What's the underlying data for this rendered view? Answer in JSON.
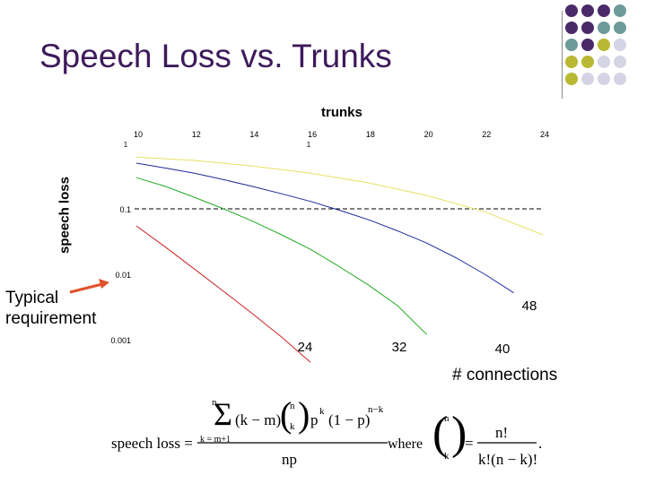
{
  "slide": {
    "title": "Speech Loss vs. Trunks",
    "annotation_typical": "Typical",
    "annotation_requirement": "requirement",
    "accent_arrow_color": "#e0522a",
    "title_color": "#3d1a5b"
  },
  "chart_data": {
    "type": "line",
    "title": "",
    "xlabel_top": "trunks",
    "ylabel": "speech loss",
    "x_ticks_top": [
      "10",
      "12",
      "14",
      "16",
      "18",
      "20",
      "22",
      "24"
    ],
    "top_secondary_ticks": [
      "1",
      "1"
    ],
    "y_ticks": [
      "0.1",
      "0.01",
      "0.001"
    ],
    "y_scale": "log",
    "ylim": [
      0.001,
      1
    ],
    "xlim": [
      10,
      24
    ],
    "reference_line": {
      "y": 0.1,
      "style": "dashed"
    },
    "connections_label": "# connections",
    "series": [
      {
        "label": "24",
        "color": "#cc2222",
        "x": [
          10,
          11,
          12,
          13,
          14,
          15,
          16
        ],
        "y": [
          0.055,
          0.026,
          0.012,
          0.0055,
          0.0025,
          0.0011,
          0.00045
        ]
      },
      {
        "label": "32",
        "color": "#22aa22",
        "x": [
          10,
          11,
          12,
          13,
          14,
          15,
          16,
          17,
          18,
          19,
          20
        ],
        "y": [
          0.3,
          0.22,
          0.15,
          0.1,
          0.065,
          0.04,
          0.024,
          0.013,
          0.0068,
          0.0033,
          0.0012
        ]
      },
      {
        "label": "40",
        "color": "#1a2a99",
        "x": [
          10,
          11,
          12,
          13,
          14,
          15,
          16,
          17,
          18,
          19,
          20,
          21,
          22,
          23
        ],
        "y": [
          0.5,
          0.42,
          0.35,
          0.28,
          0.22,
          0.17,
          0.13,
          0.095,
          0.068,
          0.046,
          0.03,
          0.018,
          0.01,
          0.0052
        ]
      },
      {
        "label": "48",
        "color": "#e8e060",
        "x": [
          10,
          12,
          14,
          16,
          18,
          20,
          22,
          24
        ],
        "y": [
          0.62,
          0.55,
          0.45,
          0.35,
          0.25,
          0.16,
          0.09,
          0.04
        ]
      }
    ]
  },
  "formula": {
    "lhs": "speech loss =",
    "sum_top": "n",
    "sum_bottom": "k = m+1",
    "numerator_a": "(k − m)",
    "binom_top": "n",
    "binom_bottom": "k",
    "p_term": "p",
    "p_exp": "k",
    "q_term": "(1 − p)",
    "q_exp": "n−k",
    "denominator": "np",
    "where": "where",
    "def_num": "n!",
    "def_den": "k!(n − k)!",
    "period": "."
  }
}
